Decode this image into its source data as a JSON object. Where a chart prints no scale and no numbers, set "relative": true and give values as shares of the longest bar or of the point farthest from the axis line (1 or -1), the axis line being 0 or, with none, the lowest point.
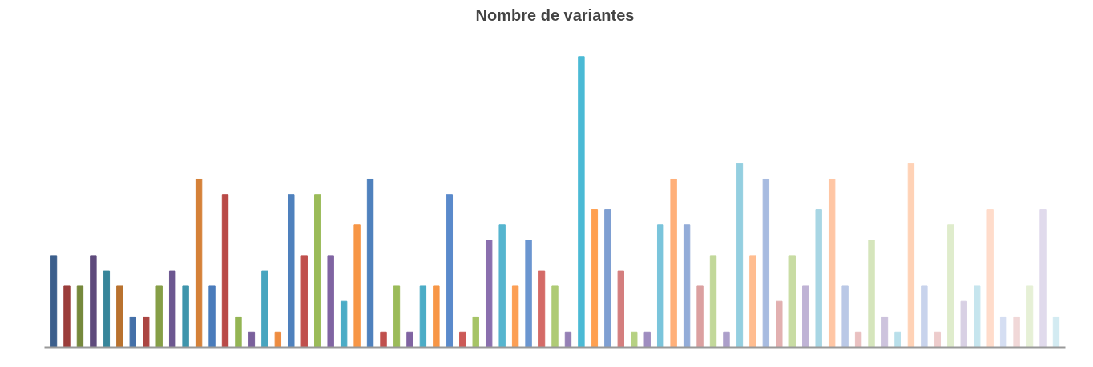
{
  "chart_data": {
    "type": "bar",
    "title": "Nombre de variantes",
    "relative": true,
    "categories": [
      null,
      null,
      null,
      null,
      null,
      null,
      null,
      null,
      null,
      null,
      null,
      null,
      null,
      null,
      null,
      null,
      null,
      null,
      null,
      null,
      null,
      null,
      null,
      null,
      null,
      null,
      null,
      null,
      null,
      null,
      null,
      null,
      null,
      null,
      null,
      null,
      null,
      null,
      null,
      null,
      null,
      null,
      null,
      null,
      null,
      null,
      null,
      null,
      null,
      null,
      null,
      null,
      null,
      null,
      null,
      null,
      null,
      null,
      null,
      null,
      null,
      null,
      null,
      null,
      null,
      null,
      null,
      null,
      null,
      null,
      null,
      null,
      null,
      null,
      null,
      null,
      null
    ],
    "values": [
      0.316,
      0.211,
      0.211,
      0.316,
      0.263,
      0.211,
      0.105,
      0.105,
      0.211,
      0.263,
      0.211,
      0.579,
      0.211,
      0.526,
      0.105,
      0.053,
      0.263,
      0.053,
      0.526,
      0.316,
      0.526,
      0.316,
      0.158,
      0.421,
      0.579,
      0.053,
      0.211,
      0.053,
      0.211,
      0.211,
      0.526,
      0.053,
      0.105,
      0.368,
      0.421,
      0.211,
      0.368,
      0.263,
      0.211,
      0.053,
      1,
      0.474,
      0.474,
      0.263,
      0.053,
      0.053,
      0.421,
      0.579,
      0.421,
      0.211,
      0.316,
      0.053,
      0.632,
      0.316,
      0.579,
      0.158,
      0.316,
      0.211,
      0.474,
      0.579,
      0.211,
      0.053,
      0.368,
      0.105,
      0.053,
      0.632,
      0.211,
      0.053,
      0.421,
      0.158,
      0.211,
      0.474,
      0.105,
      0.105,
      0.211,
      0.474,
      0.105
    ],
    "colors": [
      "#3c5f8c",
      "#9b3d3b",
      "#76893c",
      "#5e4a7c",
      "#37859a",
      "#b9722f",
      "#4470a8",
      "#ab4542",
      "#869f47",
      "#6c5790",
      "#3f95ac",
      "#d58138",
      "#4a7cbb",
      "#b94a47",
      "#94b554",
      "#7a609c",
      "#48a5bf",
      "#ee8c40",
      "#4f81bd",
      "#c0504d",
      "#9bbb59",
      "#8064a2",
      "#4bacc6",
      "#f79646",
      "#4f81bd",
      "#c0504d",
      "#9bbb59",
      "#8064a2",
      "#4bacc6",
      "#f79646",
      "#5a8acb",
      "#cc5a57",
      "#a6c466",
      "#8a6fae",
      "#56b5cf",
      "#fc9f55",
      "#6b96d0",
      "#d46a67",
      "#afcb75",
      "#9580b5",
      "#4bbad5",
      "#ffa050",
      "#7f9fd2",
      "#d47e7e",
      "#b6d183",
      "#9f8dc0",
      "#7ac4db",
      "#ffb07a",
      "#93acd8",
      "#dba0a0",
      "#c2d89a",
      "#ac9fca",
      "#94cfe0",
      "#ffbd90",
      "#a7bbe0",
      "#e2b0b0",
      "#c8dca3",
      "#bfb3d5",
      "#a8d6e4",
      "#ffc6a4",
      "#bac8e6",
      "#e9c0c0",
      "#d5e5bc",
      "#cdc3dd",
      "#b9dfea",
      "#ffd2b6",
      "#c8d3ec",
      "#edcccc",
      "#dfeccc",
      "#d8d0e4",
      "#c6e5ee",
      "#ffdccb",
      "#d5def2",
      "#f1d8d8",
      "#e6f0d6",
      "#e0daec",
      "#d3ebf2"
    ]
  }
}
